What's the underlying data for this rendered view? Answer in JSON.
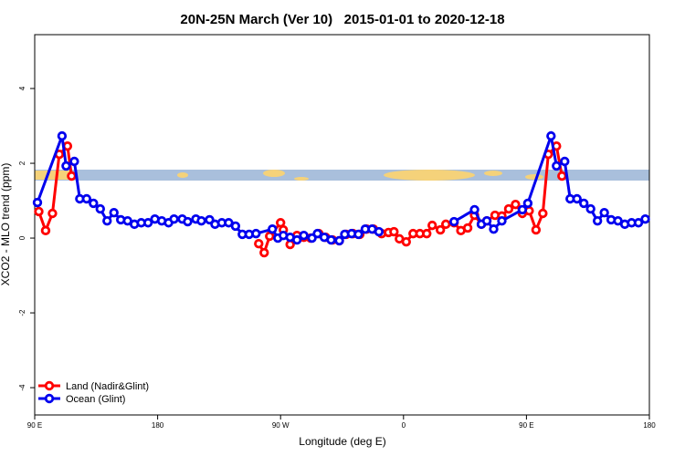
{
  "chart_data": {
    "type": "line",
    "title": "20N-25N March (Ver 10)   2015-01-01 to 2020-12-18",
    "x_label": "Longitude (deg E)",
    "y_label": "XCO2 - MLO trend (ppm)",
    "xlim": [
      90,
      540
    ],
    "xticks": [
      {
        "value": 90,
        "label": "90 E"
      },
      180,
      {
        "value": 270,
        "label": "90 W"
      },
      {
        "value": 360,
        "label": "0"
      },
      {
        "value": 450,
        "label": "90 E"
      },
      {
        "value": 540,
        "label": "180"
      }
    ],
    "ylim": [
      -4.73,
      5.44
    ],
    "yticks": [
      -4,
      -2,
      0,
      2,
      4
    ],
    "legend": "bottom-left",
    "series": [
      {
        "name": "Land (Nadir&Glint)",
        "color": "#ff0000",
        "x": [
          93,
          98,
          103,
          108,
          114,
          117,
          190,
          254,
          258,
          262,
          270,
          272,
          277,
          282,
          287,
          292,
          298,
          303,
          308,
          313,
          318,
          323,
          328,
          333,
          338,
          344,
          349,
          353,
          357,
          362,
          367,
          372,
          377,
          381,
          387,
          391,
          397,
          402,
          407,
          412,
          417,
          421,
          427,
          432,
          437,
          442,
          447,
          452,
          457,
          462,
          466,
          472,
          476
        ],
        "values": [
          0.71,
          0.2,
          0.66,
          2.24,
          2.46,
          1.66,
          null,
          -0.15,
          -0.39,
          0.05,
          0.41,
          0.22,
          -0.17,
          0.07,
          0.02,
          0.0,
          0.12,
          0.02,
          -0.05,
          -0.07,
          0.1,
          0.12,
          0.1,
          0.24,
          0.24,
          0.12,
          0.15,
          0.17,
          -0.02,
          -0.1,
          0.12,
          0.12,
          0.12,
          0.34,
          0.22,
          0.37,
          0.41,
          0.2,
          0.27,
          0.61,
          0.37,
          0.46,
          0.61,
          0.59,
          0.78,
          0.9,
          0.66,
          0.73,
          0.22,
          0.66,
          2.24,
          2.46,
          1.66
        ]
      },
      {
        "name": "Ocean (Glint)",
        "color": "#0000ee",
        "x": [
          92,
          110,
          113,
          119,
          123,
          128,
          133,
          138,
          143,
          148,
          153,
          158,
          163,
          168,
          173,
          178,
          183,
          188,
          192,
          198,
          202,
          208,
          212,
          218,
          222,
          227,
          232,
          237,
          242,
          247,
          252,
          264,
          268,
          272,
          277,
          282,
          287,
          293,
          297,
          302,
          307,
          313,
          317,
          322,
          327,
          332,
          337,
          342,
          370,
          397,
          412,
          417,
          421,
          426,
          432,
          447,
          451,
          468,
          472,
          478,
          482,
          487,
          492,
          497,
          502,
          507,
          512,
          517,
          522,
          527,
          532,
          537
        ],
        "values": [
          0.95,
          2.73,
          1.93,
          2.05,
          1.05,
          1.05,
          0.93,
          0.78,
          0.46,
          0.68,
          0.49,
          0.46,
          0.37,
          0.41,
          0.41,
          0.51,
          0.46,
          0.41,
          0.51,
          0.51,
          0.44,
          0.51,
          0.46,
          0.49,
          0.37,
          0.41,
          0.41,
          0.32,
          0.1,
          0.1,
          0.12,
          0.24,
          0.0,
          0.07,
          0.02,
          -0.05,
          0.07,
          0.0,
          0.12,
          0.02,
          -0.05,
          -0.07,
          0.1,
          0.12,
          0.1,
          0.24,
          0.24,
          0.17,
          null,
          0.44,
          0.76,
          0.37,
          0.46,
          0.24,
          0.46,
          0.76,
          0.93,
          2.73,
          1.93,
          2.05,
          1.05,
          1.05,
          0.93,
          0.78,
          0.46,
          0.68,
          0.49,
          0.46,
          0.37,
          0.41,
          0.41,
          0.51
        ]
      }
    ]
  }
}
